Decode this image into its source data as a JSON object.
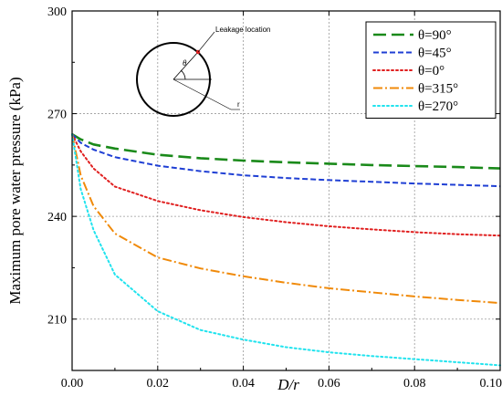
{
  "chart_data": {
    "type": "line",
    "xlabel": "D/r",
    "ylabel": "Maximum pore water pressure (kPa)",
    "xlim": [
      0,
      0.1
    ],
    "ylim": [
      195,
      300
    ],
    "xticks": [
      "0.00",
      "0.02",
      "0.04",
      "0.06",
      "0.08",
      "0.10"
    ],
    "yticks": [
      "210",
      "240",
      "270",
      "300"
    ],
    "grid": true,
    "legend_position": "top-right",
    "series": [
      {
        "name": "θ=90°",
        "color": "#1a8a1a",
        "dash": "long-dash",
        "x": [
          0,
          0.002,
          0.005,
          0.01,
          0.02,
          0.03,
          0.04,
          0.05,
          0.06,
          0.07,
          0.08,
          0.09,
          0.1
        ],
        "y": [
          264,
          262.5,
          261,
          259.8,
          258,
          257,
          256.3,
          255.8,
          255.4,
          255,
          254.7,
          254.4,
          254
        ]
      },
      {
        "name": "θ=45°",
        "color": "#1f3fd4",
        "dash": "short-dash",
        "x": [
          0,
          0.002,
          0.005,
          0.01,
          0.02,
          0.03,
          0.04,
          0.05,
          0.06,
          0.07,
          0.08,
          0.09,
          0.1
        ],
        "y": [
          264,
          261.5,
          259.5,
          257.3,
          254.8,
          253.2,
          252,
          251.2,
          250.6,
          250.1,
          249.6,
          249.2,
          248.8
        ]
      },
      {
        "name": "θ=0°",
        "color": "#e02020",
        "dash": "dotted",
        "x": [
          0,
          0.002,
          0.005,
          0.01,
          0.02,
          0.03,
          0.04,
          0.05,
          0.06,
          0.07,
          0.08,
          0.09,
          0.1
        ],
        "y": [
          264,
          259,
          254,
          248.7,
          244.5,
          241.8,
          239.8,
          238.3,
          237.1,
          236.2,
          235.4,
          234.8,
          234.4
        ]
      },
      {
        "name": "θ=315°",
        "color": "#f08a0a",
        "dash": "dash-dot",
        "x": [
          0,
          0.002,
          0.005,
          0.01,
          0.02,
          0.03,
          0.04,
          0.05,
          0.06,
          0.07,
          0.08,
          0.09,
          0.1
        ],
        "y": [
          264,
          252,
          243,
          235,
          228,
          224.8,
          222.5,
          220.6,
          219,
          217.8,
          216.6,
          215.6,
          214.7
        ]
      },
      {
        "name": "θ=270°",
        "color": "#21e3ee",
        "dash": "dotted",
        "x": [
          0,
          0.002,
          0.005,
          0.01,
          0.02,
          0.03,
          0.04,
          0.05,
          0.06,
          0.07,
          0.08,
          0.09,
          0.1
        ],
        "y": [
          264,
          248,
          236,
          223,
          212.3,
          206.8,
          204,
          201.8,
          200.3,
          199.2,
          198.3,
          197.4,
          196.5
        ]
      }
    ],
    "inset": {
      "leakage_label": "Leakage location",
      "theta_label": "θ",
      "r_label": "r"
    }
  }
}
